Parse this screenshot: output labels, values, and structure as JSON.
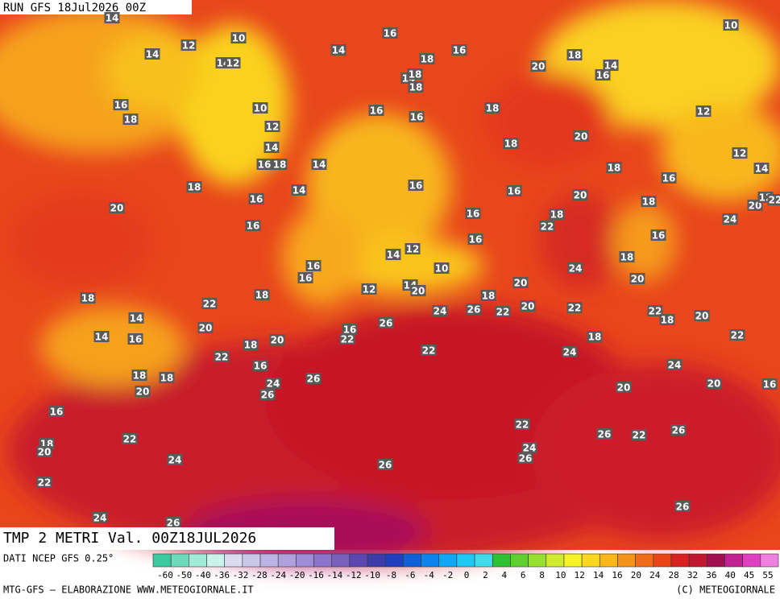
{
  "header": {
    "title": "RUN GFS 18Jul2026 00Z"
  },
  "map": {
    "caption": "TMP 2 METRI Val. 00Z18JUL2026",
    "labels": [
      14,
      10,
      12,
      14,
      14,
      12,
      14,
      16,
      16,
      18,
      14,
      18,
      18,
      20,
      18,
      14,
      16,
      10,
      16,
      18,
      10,
      16,
      16,
      18,
      12,
      20,
      12,
      18,
      14,
      12,
      16,
      18,
      14,
      18,
      14,
      16,
      18,
      14,
      16,
      16,
      20,
      18,
      20,
      12,
      22,
      20,
      16,
      16,
      16,
      18,
      22,
      24,
      16,
      16,
      14,
      12,
      10,
      16,
      16,
      24,
      18,
      20,
      12,
      14,
      20,
      18,
      18,
      22,
      20,
      18,
      26,
      22,
      20,
      22,
      24,
      22,
      18,
      20,
      14,
      26,
      20,
      16,
      22,
      18,
      22,
      14,
      16,
      20,
      18,
      22,
      24,
      22,
      16,
      24,
      18,
      18,
      26,
      24,
      20,
      26,
      20,
      20,
      16,
      16,
      22,
      26,
      22,
      26,
      18,
      20,
      22,
      24,
      26,
      24,
      26,
      22,
      26,
      24,
      26
    ]
  },
  "legend": {
    "source": "DATI NCEP GFS 0.25°",
    "ticks": [
      -60,
      -50,
      -40,
      -36,
      -32,
      -28,
      -24,
      -20,
      -16,
      -14,
      -12,
      -10,
      -8,
      -6,
      -4,
      -2,
      0,
      2,
      4,
      6,
      8,
      10,
      12,
      14,
      16,
      20,
      24,
      28,
      32,
      36,
      40,
      45,
      55
    ]
  },
  "footer": {
    "credit": "MTG-GFS — ELABORAZIONE WWW.METEOGIORNALE.IT",
    "copyright": "(C) METEOGIORNALE"
  }
}
